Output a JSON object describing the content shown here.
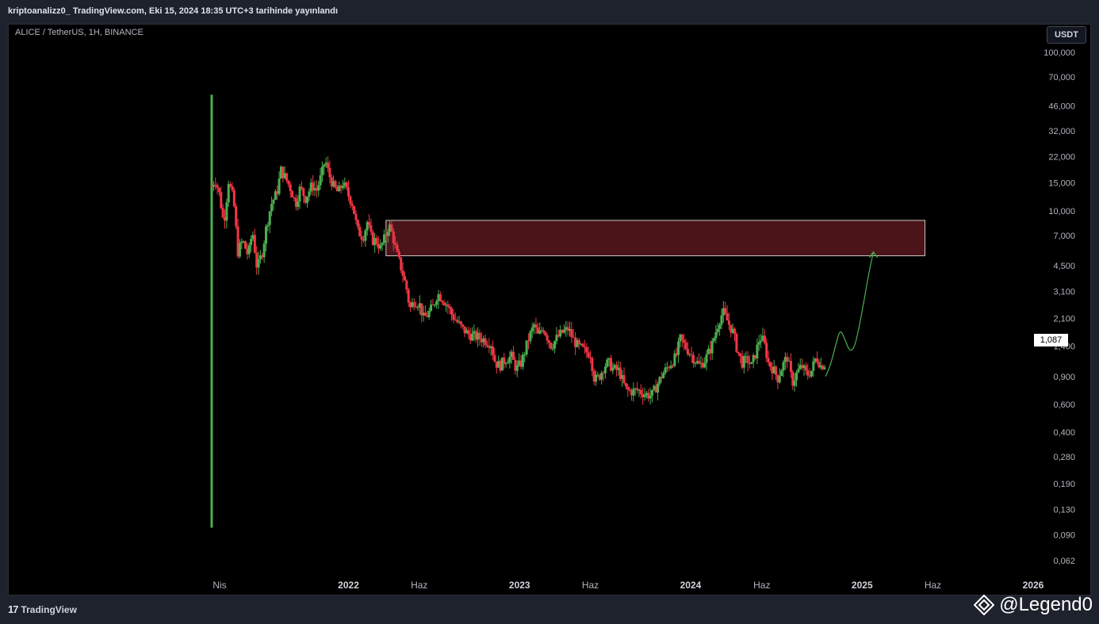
{
  "header": {
    "published_text": "kriptoanalizz0_ TradingView.com, Eki 15, 2024 18:35 UTC+3 tarihinde yayınlandı"
  },
  "chart": {
    "symbol_title": "ALICE / TetherUS, 1H, BINANCE",
    "currency": "USDT",
    "last_price": "1,087"
  },
  "footer": {
    "logo_mark": "17",
    "logo_text": "TradingView",
    "watermark": "@Legend0"
  },
  "colors": {
    "up": "#4caf50",
    "down": "#f23645",
    "zone_fill": "#4a1419",
    "zone_border": "#c8c8c8",
    "projection": "#4caf50",
    "axis_text": "#b2b5be"
  },
  "chart_data": {
    "type": "candlestick",
    "scale": "log",
    "y_tick_labels": [
      "100,000",
      "70,000",
      "46,000",
      "32,000",
      "22,000",
      "15,000",
      "10,000",
      "7,000",
      "4,500",
      "3,100",
      "2,100",
      "1,400",
      "0,900",
      "0,600",
      "0,400",
      "0,280",
      "0,190",
      "0,130",
      "0,090",
      "0,062"
    ],
    "y_tick_values": [
      100,
      70,
      46,
      32,
      22,
      15,
      10,
      7,
      4.5,
      3.1,
      2.1,
      1.4,
      0.9,
      0.6,
      0.4,
      0.28,
      0.19,
      0.13,
      0.09,
      0.062
    ],
    "x_tick_labels": [
      "Nis",
      "2022",
      "Haz",
      "2023",
      "Haz",
      "2024",
      "Haz",
      "2025",
      "Haz",
      "2026"
    ],
    "x_tick_dates": [
      "2021-04-01",
      "2022-01-01",
      "2022-06-01",
      "2023-01-01",
      "2023-06-01",
      "2024-01-01",
      "2024-06-01",
      "2025-01-01",
      "2025-06-01",
      "2026-01-01"
    ],
    "price_path": [
      [
        "2021-03-15",
        14.2
      ],
      [
        "2021-03-22",
        16.0
      ],
      [
        "2021-04-01",
        12.5
      ],
      [
        "2021-04-10",
        8.2
      ],
      [
        "2021-04-20",
        15.5
      ],
      [
        "2021-05-01",
        11.5
      ],
      [
        "2021-05-10",
        5.5
      ],
      [
        "2021-05-20",
        6.5
      ],
      [
        "2021-06-01",
        5.2
      ],
      [
        "2021-06-10",
        7.5
      ],
      [
        "2021-06-20",
        4.3
      ],
      [
        "2021-07-01",
        5.5
      ],
      [
        "2021-07-10",
        8.0
      ],
      [
        "2021-07-20",
        11.0
      ],
      [
        "2021-08-01",
        13.0
      ],
      [
        "2021-08-10",
        18.0
      ],
      [
        "2021-08-20",
        16.0
      ],
      [
        "2021-09-01",
        13.5
      ],
      [
        "2021-09-10",
        11.0
      ],
      [
        "2021-09-20",
        14.0
      ],
      [
        "2021-10-01",
        12.0
      ],
      [
        "2021-10-15",
        14.5
      ],
      [
        "2021-10-25",
        13.5
      ],
      [
        "2021-11-05",
        17.0
      ],
      [
        "2021-11-12",
        21.0
      ],
      [
        "2021-11-20",
        17.0
      ],
      [
        "2021-12-01",
        14.0
      ],
      [
        "2021-12-10",
        13.0
      ],
      [
        "2021-12-20",
        15.0
      ],
      [
        "2022-01-01",
        12.5
      ],
      [
        "2022-01-10",
        11.0
      ],
      [
        "2022-01-20",
        7.5
      ],
      [
        "2022-02-01",
        6.8
      ],
      [
        "2022-02-10",
        8.5
      ],
      [
        "2022-02-20",
        6.5
      ],
      [
        "2022-03-01",
        6.5
      ],
      [
        "2022-03-10",
        5.8
      ],
      [
        "2022-03-20",
        6.8
      ],
      [
        "2022-03-28",
        8.2
      ],
      [
        "2022-04-05",
        7.0
      ],
      [
        "2022-04-15",
        5.2
      ],
      [
        "2022-04-25",
        4.2
      ],
      [
        "2022-05-05",
        3.2
      ],
      [
        "2022-05-12",
        2.4
      ],
      [
        "2022-05-20",
        2.7
      ],
      [
        "2022-06-01",
        2.6
      ],
      [
        "2022-06-10",
        2.1
      ],
      [
        "2022-06-18",
        2.2
      ],
      [
        "2022-07-01",
        2.5
      ],
      [
        "2022-07-10",
        3.0
      ],
      [
        "2022-07-20",
        2.8
      ],
      [
        "2022-08-01",
        2.5
      ],
      [
        "2022-08-10",
        2.2
      ],
      [
        "2022-08-20",
        2.0
      ],
      [
        "2022-09-01",
        1.8
      ],
      [
        "2022-09-15",
        1.65
      ],
      [
        "2022-10-01",
        1.6
      ],
      [
        "2022-10-15",
        1.55
      ],
      [
        "2022-11-01",
        1.45
      ],
      [
        "2022-11-10",
        1.1
      ],
      [
        "2022-11-20",
        1.05
      ],
      [
        "2022-12-01",
        1.15
      ],
      [
        "2022-12-15",
        1.2
      ],
      [
        "2022-12-25",
        1.0
      ],
      [
        "2023-01-05",
        1.1
      ],
      [
        "2023-01-20",
        1.55
      ],
      [
        "2023-02-01",
        1.9
      ],
      [
        "2023-02-10",
        1.6
      ],
      [
        "2023-02-20",
        1.85
      ],
      [
        "2023-03-01",
        1.6
      ],
      [
        "2023-03-10",
        1.4
      ],
      [
        "2023-03-20",
        1.55
      ],
      [
        "2023-04-01",
        1.7
      ],
      [
        "2023-04-15",
        1.8
      ],
      [
        "2023-04-25",
        1.55
      ],
      [
        "2023-05-05",
        1.4
      ],
      [
        "2023-05-20",
        1.3
      ],
      [
        "2023-06-01",
        1.25
      ],
      [
        "2023-06-10",
        0.85
      ],
      [
        "2023-06-20",
        0.9
      ],
      [
        "2023-07-01",
        1.05
      ],
      [
        "2023-07-10",
        1.1
      ],
      [
        "2023-07-20",
        1.0
      ],
      [
        "2023-08-01",
        0.98
      ],
      [
        "2023-08-15",
        0.75
      ],
      [
        "2023-08-25",
        0.72
      ],
      [
        "2023-09-10",
        0.74
      ],
      [
        "2023-09-25",
        0.7
      ],
      [
        "2023-10-10",
        0.68
      ],
      [
        "2023-10-20",
        0.78
      ],
      [
        "2023-11-01",
        0.92
      ],
      [
        "2023-11-15",
        1.05
      ],
      [
        "2023-12-01",
        1.2
      ],
      [
        "2023-12-10",
        1.55
      ],
      [
        "2023-12-20",
        1.4
      ],
      [
        "2024-01-01",
        1.25
      ],
      [
        "2024-01-10",
        1.15
      ],
      [
        "2024-01-20",
        1.05
      ],
      [
        "2024-02-01",
        1.15
      ],
      [
        "2024-02-15",
        1.4
      ],
      [
        "2024-03-01",
        2.0
      ],
      [
        "2024-03-10",
        2.3
      ],
      [
        "2024-03-20",
        2.0
      ],
      [
        "2024-04-01",
        1.7
      ],
      [
        "2024-04-10",
        1.3
      ],
      [
        "2024-04-20",
        1.1
      ],
      [
        "2024-05-01",
        1.15
      ],
      [
        "2024-05-10",
        1.05
      ],
      [
        "2024-05-20",
        1.3
      ],
      [
        "2024-05-28",
        1.6
      ],
      [
        "2024-06-05",
        1.5
      ],
      [
        "2024-06-15",
        1.1
      ],
      [
        "2024-06-25",
        1.0
      ],
      [
        "2024-07-05",
        0.88
      ],
      [
        "2024-07-15",
        1.05
      ],
      [
        "2024-07-25",
        1.2
      ],
      [
        "2024-08-05",
        0.82
      ],
      [
        "2024-08-15",
        0.95
      ],
      [
        "2024-08-25",
        1.05
      ],
      [
        "2024-09-05",
        0.92
      ],
      [
        "2024-09-15",
        0.98
      ],
      [
        "2024-09-25",
        1.2
      ],
      [
        "2024-10-05",
        1.05
      ],
      [
        "2024-10-15",
        1.087
      ]
    ],
    "spike": {
      "date": "2021-03-15",
      "high": 54,
      "low": 0.1
    },
    "resistance_zone": {
      "start": "2022-03-22",
      "end": "2025-05-15",
      "top": 8.7,
      "bottom": 5.2
    },
    "projection_path": [
      [
        "2024-10-15",
        0.9
      ],
      [
        "2024-10-25",
        1.05
      ],
      [
        "2024-11-05",
        1.4
      ],
      [
        "2024-11-15",
        1.8
      ],
      [
        "2024-11-25",
        1.55
      ],
      [
        "2024-12-05",
        1.3
      ],
      [
        "2024-12-15",
        1.35
      ],
      [
        "2024-12-25",
        1.8
      ],
      [
        "2025-01-05",
        2.7
      ],
      [
        "2025-01-15",
        4.0
      ],
      [
        "2025-01-25",
        5.5
      ]
    ]
  }
}
